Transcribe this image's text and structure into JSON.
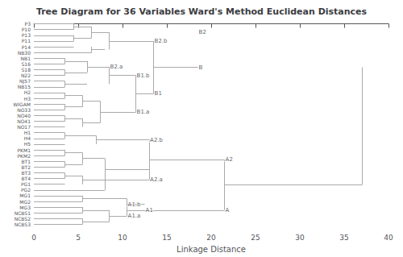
{
  "chart_data": {
    "type": "dendrogram",
    "title": "Tree Diagram for 36 Variables Ward's Method Euclidean Distances",
    "xlabel": "Linkage Distance",
    "xlim": [
      0,
      40
    ],
    "xticks": [
      0,
      5,
      10,
      15,
      20,
      25,
      30,
      35,
      40
    ],
    "grid": false,
    "color": "#aaaaaa",
    "categories": [
      "P3",
      "P10",
      "P13",
      "P11",
      "P14",
      "NB30",
      "NB1",
      "S16",
      "S18",
      "N22",
      "NJ57",
      "NB15",
      "H2",
      "H3",
      "WIGAM",
      "NO33",
      "NO40",
      "NO41",
      "NO17",
      "H1",
      "H4",
      "H5",
      "PKM1",
      "PKM2",
      "BT1",
      "BT2",
      "BT3",
      "BT4",
      "PG1",
      "PG2",
      "MG1",
      "MG2",
      "MG3",
      "NCBS1",
      "NCBS2",
      "NCBS3"
    ],
    "segments": [
      {
        "y1": 0,
        "y2": 0,
        "x1": 0,
        "x2": 4.5
      },
      {
        "y1": 1,
        "y2": 1,
        "x1": 0,
        "x2": 4.5
      },
      {
        "y1": 0,
        "y2": 1,
        "x1": 4.5,
        "x2": 4.5
      },
      {
        "y1": 0.5,
        "y2": 0.5,
        "x1": 4.5,
        "x2": 6.5
      },
      {
        "y1": 2,
        "y2": 2,
        "x1": 0,
        "x2": 4.5
      },
      {
        "y1": 3,
        "y2": 3,
        "x1": 0,
        "x2": 4.5
      },
      {
        "y1": 2,
        "y2": 3,
        "x1": 4.5,
        "x2": 4.5
      },
      {
        "y1": 2.5,
        "y2": 2.5,
        "x1": 4.5,
        "x2": 6.5
      },
      {
        "y1": 4,
        "y2": 4,
        "x1": 0,
        "x2": 4.5
      },
      {
        "y1": 5,
        "y2": 5,
        "x1": 0,
        "x2": 6.5
      },
      {
        "y1": 4,
        "y2": 5,
        "x1": 6.5,
        "x2": 6.5
      },
      {
        "y1": 4.5,
        "y2": 4.5,
        "x1": 6.5,
        "x2": 8.0
      },
      {
        "y1": 0.5,
        "y2": 2.5,
        "x1": 6.5,
        "x2": 6.5
      },
      {
        "y1": 1.5,
        "y2": 1.5,
        "x1": 6.5,
        "x2": 8.5
      },
      {
        "y1": 1.5,
        "y2": 4.5,
        "x1": 8.5,
        "x2": 8.5
      },
      {
        "y1": 3.0,
        "y2": 3.0,
        "x1": 8.5,
        "x2": 13.5
      },
      {
        "y1": 6,
        "y2": 6,
        "x1": 0,
        "x2": 3.5
      },
      {
        "y1": 7,
        "y2": 7,
        "x1": 0,
        "x2": 3.5
      },
      {
        "y1": 8,
        "y2": 8,
        "x1": 0,
        "x2": 3.5
      },
      {
        "y1": 9,
        "y2": 9,
        "x1": 0,
        "x2": 3.5
      },
      {
        "y1": 6,
        "y2": 7,
        "x1": 3.5,
        "x2": 3.5
      },
      {
        "y1": 6.5,
        "y2": 6.5,
        "x1": 3.5,
        "x2": 6.0
      },
      {
        "y1": 8,
        "y2": 9,
        "x1": 3.5,
        "x2": 3.5
      },
      {
        "y1": 8.5,
        "y2": 8.5,
        "x1": 3.5,
        "x2": 6.0
      },
      {
        "y1": 6.5,
        "y2": 8.5,
        "x1": 6.0,
        "x2": 6.0
      },
      {
        "y1": 7.5,
        "y2": 7.5,
        "x1": 6.0,
        "x2": 8.5
      },
      {
        "y1": 10,
        "y2": 10,
        "x1": 0,
        "x2": 3.5
      },
      {
        "y1": 11,
        "y2": 11,
        "x1": 0,
        "x2": 3.5
      },
      {
        "y1": 10,
        "y2": 11,
        "x1": 3.5,
        "x2": 3.5
      },
      {
        "y1": 10.5,
        "y2": 10.5,
        "x1": 3.5,
        "x2": 6.0
      },
      {
        "y1": 7.5,
        "y2": 10.5,
        "x1": 8.5,
        "x2": 8.5
      },
      {
        "y1": 9.0,
        "y2": 9.0,
        "x1": 8.5,
        "x2": 11.5
      },
      {
        "y1": 12,
        "y2": 12,
        "x1": 0,
        "x2": 3.5
      },
      {
        "y1": 13,
        "y2": 13,
        "x1": 0,
        "x2": 3.5
      },
      {
        "y1": 14,
        "y2": 14,
        "x1": 0,
        "x2": 3.5
      },
      {
        "y1": 15,
        "y2": 15,
        "x1": 0,
        "x2": 3.5
      },
      {
        "y1": 16,
        "y2": 16,
        "x1": 0,
        "x2": 3.5
      },
      {
        "y1": 17,
        "y2": 17,
        "x1": 0,
        "x2": 3.5
      },
      {
        "y1": 18,
        "y2": 18,
        "x1": 0,
        "x2": 3.5
      },
      {
        "y1": 12,
        "y2": 13,
        "x1": 3.5,
        "x2": 3.5
      },
      {
        "y1": 12.5,
        "y2": 12.5,
        "x1": 3.5,
        "x2": 5.5
      },
      {
        "y1": 14,
        "y2": 15,
        "x1": 3.5,
        "x2": 3.5
      },
      {
        "y1": 14.5,
        "y2": 14.5,
        "x1": 3.5,
        "x2": 5.5
      },
      {
        "y1": 12.5,
        "y2": 14.5,
        "x1": 5.5,
        "x2": 5.5
      },
      {
        "y1": 13.5,
        "y2": 13.5,
        "x1": 5.5,
        "x2": 7.5
      },
      {
        "y1": 16,
        "y2": 17,
        "x1": 3.5,
        "x2": 3.5
      },
      {
        "y1": 16.5,
        "y2": 16.5,
        "x1": 3.5,
        "x2": 5.5
      },
      {
        "y1": 16.5,
        "y2": 18,
        "x1": 5.5,
        "x2": 5.5
      },
      {
        "y1": 17.25,
        "y2": 17.25,
        "x1": 5.5,
        "x2": 7.5
      },
      {
        "y1": 13.5,
        "y2": 17.25,
        "x1": 7.5,
        "x2": 7.5
      },
      {
        "y1": 15.375,
        "y2": 15.375,
        "x1": 7.5,
        "x2": 11.5
      },
      {
        "y1": 9.0,
        "y2": 15.375,
        "x1": 11.5,
        "x2": 11.5
      },
      {
        "y1": 12.1875,
        "y2": 12.1875,
        "x1": 11.5,
        "x2": 13.5
      },
      {
        "y1": 3.0,
        "y2": 12.1875,
        "x1": 13.5,
        "x2": 13.5
      },
      {
        "y1": 7.59375,
        "y2": 7.59375,
        "x1": 13.5,
        "x2": 18.5
      },
      {
        "y1": 19,
        "y2": 19,
        "x1": 0,
        "x2": 3.5
      },
      {
        "y1": 20,
        "y2": 20,
        "x1": 0,
        "x2": 3.5
      },
      {
        "y1": 21,
        "y2": 21,
        "x1": 0,
        "x2": 3.5
      },
      {
        "y1": 19,
        "y2": 20,
        "x1": 3.5,
        "x2": 3.5
      },
      {
        "y1": 19.5,
        "y2": 19.5,
        "x1": 3.5,
        "x2": 7.0
      },
      {
        "y1": 19.5,
        "y2": 21,
        "x1": 7.0,
        "x2": 7.0
      },
      {
        "y1": 20.25,
        "y2": 20.25,
        "x1": 7.0,
        "x2": 13.0
      },
      {
        "y1": 22,
        "y2": 22,
        "x1": 0,
        "x2": 3.5
      },
      {
        "y1": 23,
        "y2": 23,
        "x1": 0,
        "x2": 3.5
      },
      {
        "y1": 24,
        "y2": 24,
        "x1": 0,
        "x2": 3.5
      },
      {
        "y1": 25,
        "y2": 25,
        "x1": 0,
        "x2": 3.5
      },
      {
        "y1": 26,
        "y2": 26,
        "x1": 0,
        "x2": 3.5
      },
      {
        "y1": 27,
        "y2": 27,
        "x1": 0,
        "x2": 3.5
      },
      {
        "y1": 28,
        "y2": 28,
        "x1": 0,
        "x2": 3.5
      },
      {
        "y1": 29,
        "y2": 29,
        "x1": 0,
        "x2": 3.5
      },
      {
        "y1": 22,
        "y2": 23,
        "x1": 3.5,
        "x2": 3.5
      },
      {
        "y1": 22.5,
        "y2": 22.5,
        "x1": 3.5,
        "x2": 5.5
      },
      {
        "y1": 24,
        "y2": 25,
        "x1": 3.5,
        "x2": 3.5
      },
      {
        "y1": 24.5,
        "y2": 24.5,
        "x1": 3.5,
        "x2": 5.5
      },
      {
        "y1": 22.5,
        "y2": 24.5,
        "x1": 5.5,
        "x2": 5.5
      },
      {
        "y1": 23.5,
        "y2": 23.5,
        "x1": 5.5,
        "x2": 8.0
      },
      {
        "y1": 26,
        "y2": 27,
        "x1": 3.5,
        "x2": 3.5
      },
      {
        "y1": 26.5,
        "y2": 26.5,
        "x1": 3.5,
        "x2": 5.5
      },
      {
        "y1": 26.5,
        "y2": 28,
        "x1": 5.5,
        "x2": 5.5
      },
      {
        "y1": 27.25,
        "y2": 27.25,
        "x1": 5.5,
        "x2": 8.0
      },
      {
        "y1": 23.5,
        "y2": 27.25,
        "x1": 8.0,
        "x2": 8.0
      },
      {
        "y1": 25.375,
        "y2": 25.375,
        "x1": 8.0,
        "x2": 13.0
      },
      {
        "y1": 29,
        "y2": 29,
        "x1": 3.5,
        "x2": 8.0
      },
      {
        "y1": 25.375,
        "y2": 29,
        "x1": 8.0,
        "x2": 8.0
      },
      {
        "y1": 27.1875,
        "y2": 27.1875,
        "x1": 8.0,
        "x2": 13.0
      },
      {
        "y1": 20.25,
        "y2": 27.1875,
        "x1": 13.0,
        "x2": 13.0
      },
      {
        "y1": 23.71875,
        "y2": 23.71875,
        "x1": 13.0,
        "x2": 21.5
      },
      {
        "y1": 30,
        "y2": 30,
        "x1": 0,
        "x2": 5.5
      },
      {
        "y1": 31,
        "y2": 31,
        "x1": 0,
        "x2": 5.5
      },
      {
        "y1": 30,
        "y2": 31,
        "x1": 5.5,
        "x2": 5.5
      },
      {
        "y1": 30.5,
        "y2": 30.5,
        "x1": 5.5,
        "x2": 10.5
      },
      {
        "y1": 32,
        "y2": 32,
        "x1": 0,
        "x2": 5.5
      },
      {
        "y1": 33,
        "y2": 33,
        "x1": 0,
        "x2": 5.5
      },
      {
        "y1": 32,
        "y2": 33,
        "x1": 5.5,
        "x2": 5.5
      },
      {
        "y1": 32.5,
        "y2": 32.5,
        "x1": 5.5,
        "x2": 8.5
      },
      {
        "y1": 30.5,
        "y2": 32.5,
        "x1": 10.5,
        "x2": 10.5
      },
      {
        "y1": 31.5,
        "y2": 31.5,
        "x1": 10.5,
        "x2": 12.5
      },
      {
        "y1": 34,
        "y2": 34,
        "x1": 0,
        "x2": 5.5
      },
      {
        "y1": 35,
        "y2": 35,
        "x1": 0,
        "x2": 5.5
      },
      {
        "y1": 34,
        "y2": 35,
        "x1": 5.5,
        "x2": 5.5
      },
      {
        "y1": 34.5,
        "y2": 34.5,
        "x1": 5.5,
        "x2": 8.5
      },
      {
        "y1": 32.5,
        "y2": 34.5,
        "x1": 8.5,
        "x2": 8.5
      },
      {
        "y1": 33.5,
        "y2": 33.5,
        "x1": 8.5,
        "x2": 10.5
      },
      {
        "y1": 31.5,
        "y2": 33.5,
        "x1": 10.5,
        "x2": 10.5
      },
      {
        "y1": 32.5,
        "y2": 32.5,
        "x1": 10.5,
        "x2": 21.5
      },
      {
        "y1": 23.71875,
        "y2": 32.5,
        "x1": 21.5,
        "x2": 21.5
      },
      {
        "y1": 28.109375,
        "y2": 28.109375,
        "x1": 21.5,
        "x2": 37.0
      },
      {
        "y1": 7.59375,
        "y2": 28.109375,
        "x1": 37.0,
        "x2": 37.0
      }
    ],
    "annotations": [
      {
        "text": "B2.b",
        "x": 13.6,
        "y": 3.0
      },
      {
        "text": "B2",
        "x": 18.6,
        "y": 1.5
      },
      {
        "text": "B2.a",
        "x": 8.6,
        "y": 7.5
      },
      {
        "text": "B1.b",
        "x": 11.6,
        "y": 9.0
      },
      {
        "text": "B1",
        "x": 13.6,
        "y": 12.1875
      },
      {
        "text": "B1.a",
        "x": 11.6,
        "y": 15.375
      },
      {
        "text": "B",
        "x": 18.6,
        "y": 7.59375
      },
      {
        "text": "A2.b",
        "x": 13.1,
        "y": 20.25
      },
      {
        "text": "A2",
        "x": 21.6,
        "y": 23.71875
      },
      {
        "text": "A2.a",
        "x": 13.1,
        "y": 27.1875
      },
      {
        "text": "A1.b",
        "x": 10.6,
        "y": 31.5
      },
      {
        "text": "A1",
        "x": 12.6,
        "y": 32.5
      },
      {
        "text": "A1.a",
        "x": 10.6,
        "y": 33.5
      },
      {
        "text": "A",
        "x": 21.6,
        "y": 32.5
      }
    ]
  }
}
